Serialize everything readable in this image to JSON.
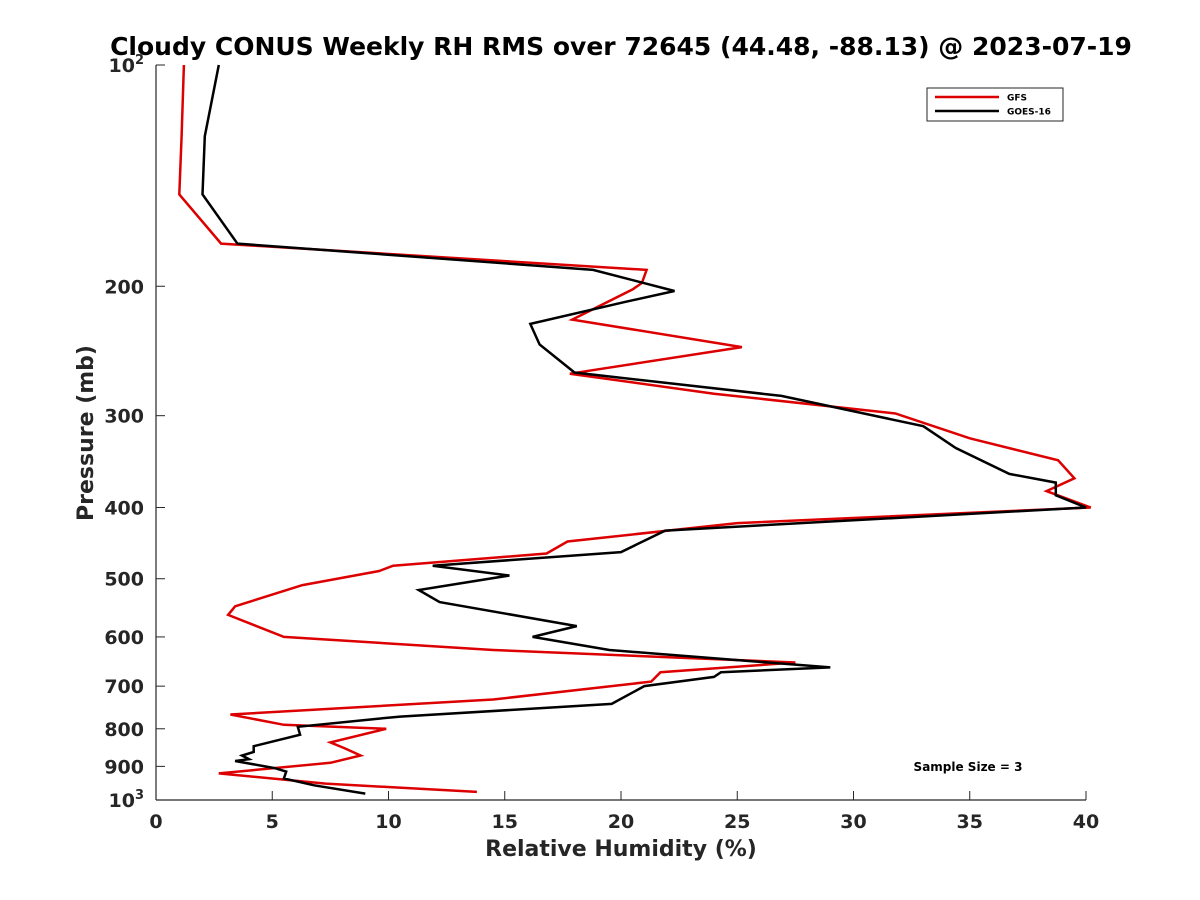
{
  "chart_data": {
    "type": "line",
    "title": "Cloudy CONUS Weekly RH RMS over 72645 (44.48, -88.13) @ 2023-07-19",
    "xlabel": "Relative Humidity (%)",
    "ylabel": "Pressure (mb)",
    "xlim": [
      0,
      40
    ],
    "ylim": [
      100,
      1000
    ],
    "y_scale": "log",
    "y_reversed": true,
    "xticks": [
      "0",
      "5",
      "10",
      "15",
      "20",
      "25",
      "30",
      "35",
      "40"
    ],
    "yticks": [
      {
        "value": 100,
        "base": "10",
        "exp": "2"
      },
      {
        "value": 200,
        "label": "200"
      },
      {
        "value": 300,
        "label": "300"
      },
      {
        "value": 400,
        "label": "400"
      },
      {
        "value": 500,
        "label": "500"
      },
      {
        "value": 600,
        "label": "600"
      },
      {
        "value": 700,
        "label": "700"
      },
      {
        "value": 800,
        "label": "800"
      },
      {
        "value": 900,
        "label": "900"
      },
      {
        "value": 1000,
        "base": "10",
        "exp": "3"
      }
    ],
    "legend": "top-right",
    "grid": false,
    "annotation": "Sample Size = 3",
    "series": [
      {
        "name": "GFS",
        "color": "#dd0000",
        "points": [
          [
            1.2,
            100
          ],
          [
            1.1,
            125
          ],
          [
            1.0,
            150
          ],
          [
            2.8,
            175
          ],
          [
            21.1,
            190
          ],
          [
            20.9,
            198
          ],
          [
            20.5,
            202
          ],
          [
            17.9,
            222
          ],
          [
            25.2,
            242
          ],
          [
            17.8,
            263
          ],
          [
            24.0,
            280
          ],
          [
            31.8,
            298
          ],
          [
            35.0,
            322
          ],
          [
            38.8,
            345
          ],
          [
            39.5,
            365
          ],
          [
            38.3,
            380
          ],
          [
            40.2,
            400
          ],
          [
            25.0,
            420
          ],
          [
            17.7,
            445
          ],
          [
            16.8,
            462
          ],
          [
            10.2,
            480
          ],
          [
            9.6,
            488
          ],
          [
            6.3,
            510
          ],
          [
            3.4,
            545
          ],
          [
            3.1,
            560
          ],
          [
            5.5,
            600
          ],
          [
            14.5,
            625
          ],
          [
            27.5,
            650
          ],
          [
            21.7,
            670
          ],
          [
            21.3,
            690
          ],
          [
            14.5,
            730
          ],
          [
            3.2,
            765
          ],
          [
            5.5,
            790
          ],
          [
            9.9,
            800
          ],
          [
            7.5,
            835
          ],
          [
            8.1,
            850
          ],
          [
            8.8,
            870
          ],
          [
            7.5,
            890
          ],
          [
            2.7,
            920
          ],
          [
            7.3,
            950
          ],
          [
            13.8,
            975
          ]
        ]
      },
      {
        "name": "GOES-16",
        "color": "#000000",
        "points": [
          [
            2.7,
            100
          ],
          [
            2.1,
            125
          ],
          [
            2.0,
            150
          ],
          [
            3.5,
            175
          ],
          [
            18.8,
            190
          ],
          [
            22.3,
            203
          ],
          [
            20.2,
            210
          ],
          [
            16.1,
            225
          ],
          [
            16.5,
            240
          ],
          [
            18.0,
            262
          ],
          [
            26.9,
            282
          ],
          [
            33.0,
            310
          ],
          [
            34.4,
            332
          ],
          [
            36.7,
            360
          ],
          [
            38.7,
            370
          ],
          [
            38.7,
            385
          ],
          [
            40.0,
            400
          ],
          [
            21.9,
            430
          ],
          [
            20.0,
            460
          ],
          [
            11.9,
            480
          ],
          [
            15.2,
            495
          ],
          [
            11.3,
            518
          ],
          [
            12.2,
            538
          ],
          [
            18.1,
            580
          ],
          [
            16.2,
            600
          ],
          [
            19.5,
            625
          ],
          [
            29.0,
            660
          ],
          [
            24.3,
            670
          ],
          [
            24.0,
            680
          ],
          [
            21.0,
            700
          ],
          [
            19.6,
            740
          ],
          [
            10.5,
            770
          ],
          [
            9.6,
            775
          ],
          [
            6.1,
            795
          ],
          [
            6.2,
            815
          ],
          [
            4.2,
            845
          ],
          [
            4.2,
            860
          ],
          [
            3.7,
            870
          ],
          [
            4.0,
            880
          ],
          [
            3.4,
            885
          ],
          [
            5.1,
            905
          ],
          [
            5.6,
            915
          ],
          [
            5.5,
            935
          ],
          [
            6.8,
            955
          ],
          [
            9.0,
            980
          ]
        ]
      }
    ]
  }
}
